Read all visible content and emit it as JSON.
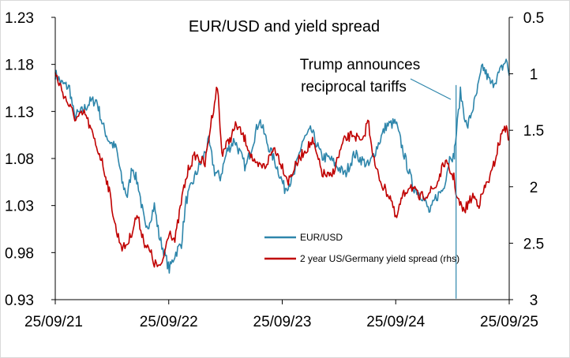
{
  "chart_data": {
    "type": "line",
    "title": "EUR/USD and yield spread",
    "xlabel": "",
    "ylabel": "",
    "x_ticks": [
      "25/09/21",
      "25/09/22",
      "25/09/23",
      "25/09/24",
      "25/09/25"
    ],
    "y_left": {
      "ticks": [
        "0.93",
        "0.98",
        "1.03",
        "1.08",
        "1.13",
        "1.18",
        "1.23"
      ],
      "range": [
        0.93,
        1.23
      ]
    },
    "y_right": {
      "ticks": [
        "0.5",
        "1",
        "1.5",
        "2",
        "2.5",
        "3"
      ],
      "range": [
        0.5,
        3
      ],
      "inverted": true
    },
    "legend_position": "bottom-center",
    "annotation": "Trump announces reciprocal tariffs",
    "series": [
      {
        "name": "EUR/USD",
        "axis": "left",
        "color": "#2e86ab",
        "points": [
          [
            "2021-09-25",
            1.17
          ],
          [
            "2021-10-15",
            1.16
          ],
          [
            "2021-11-10",
            1.155
          ],
          [
            "2021-11-25",
            1.125
          ],
          [
            "2021-12-20",
            1.13
          ],
          [
            "2022-01-15",
            1.14
          ],
          [
            "2022-02-05",
            1.142
          ],
          [
            "2022-02-25",
            1.115
          ],
          [
            "2022-03-15",
            1.1
          ],
          [
            "2022-04-10",
            1.09
          ],
          [
            "2022-04-28",
            1.055
          ],
          [
            "2022-05-15",
            1.04
          ],
          [
            "2022-05-31",
            1.072
          ],
          [
            "2022-06-20",
            1.05
          ],
          [
            "2022-07-14",
            1.002
          ],
          [
            "2022-08-10",
            1.03
          ],
          [
            "2022-08-25",
            0.998
          ],
          [
            "2022-09-27",
            0.962
          ],
          [
            "2022-10-15",
            0.978
          ],
          [
            "2022-11-05",
            0.99
          ],
          [
            "2022-11-20",
            1.035
          ],
          [
            "2022-12-20",
            1.062
          ],
          [
            "2023-01-15",
            1.082
          ],
          [
            "2023-02-01",
            1.098
          ],
          [
            "2023-02-20",
            1.066
          ],
          [
            "2023-03-10",
            1.06
          ],
          [
            "2023-04-01",
            1.088
          ],
          [
            "2023-04-25",
            1.1
          ],
          [
            "2023-05-31",
            1.07
          ],
          [
            "2023-07-14",
            1.122
          ],
          [
            "2023-08-10",
            1.095
          ],
          [
            "2023-09-10",
            1.07
          ],
          [
            "2023-10-03",
            1.048
          ],
          [
            "2023-11-01",
            1.06
          ],
          [
            "2023-11-29",
            1.098
          ],
          [
            "2023-12-28",
            1.11
          ],
          [
            "2024-01-30",
            1.082
          ],
          [
            "2024-02-25",
            1.08
          ],
          [
            "2024-04-15",
            1.063
          ],
          [
            "2024-05-15",
            1.085
          ],
          [
            "2024-06-30",
            1.072
          ],
          [
            "2024-08-25",
            1.115
          ],
          [
            "2024-09-25",
            1.118
          ],
          [
            "2024-10-25",
            1.08
          ],
          [
            "2024-11-20",
            1.05
          ],
          [
            "2024-12-20",
            1.04
          ],
          [
            "2025-01-13",
            1.022
          ],
          [
            "2025-01-31",
            1.038
          ],
          [
            "2025-02-25",
            1.048
          ],
          [
            "2025-03-20",
            1.085
          ],
          [
            "2025-04-01",
            1.08
          ],
          [
            "2025-04-02",
            1.09
          ],
          [
            "2025-04-08",
            1.107
          ],
          [
            "2025-04-21",
            1.15
          ],
          [
            "2025-05-12",
            1.112
          ],
          [
            "2025-06-10",
            1.145
          ],
          [
            "2025-07-01",
            1.178
          ],
          [
            "2025-07-30",
            1.158
          ],
          [
            "2025-08-20",
            1.168
          ],
          [
            "2025-09-15",
            1.185
          ],
          [
            "2025-09-25",
            1.168
          ]
        ]
      },
      {
        "name": "2 year US/Germany yield spread (rhs)",
        "axis": "right",
        "color": "#c00000",
        "points": [
          [
            "2021-09-25",
            1.0
          ],
          [
            "2021-10-25",
            1.2
          ],
          [
            "2021-11-30",
            1.4
          ],
          [
            "2021-12-30",
            1.35
          ],
          [
            "2022-01-30",
            1.6
          ],
          [
            "2022-02-20",
            1.75
          ],
          [
            "2022-03-15",
            2.0
          ],
          [
            "2022-04-10",
            2.4
          ],
          [
            "2022-05-01",
            2.55
          ],
          [
            "2022-05-20",
            2.48
          ],
          [
            "2022-06-15",
            2.25
          ],
          [
            "2022-07-10",
            2.5
          ],
          [
            "2022-07-31",
            2.6
          ],
          [
            "2022-08-10",
            2.68
          ],
          [
            "2022-09-01",
            2.72
          ],
          [
            "2022-09-27",
            2.38
          ],
          [
            "2022-10-15",
            2.48
          ],
          [
            "2022-11-10",
            2.05
          ],
          [
            "2022-11-30",
            1.82
          ],
          [
            "2022-12-20",
            1.72
          ],
          [
            "2023-01-20",
            1.8
          ],
          [
            "2023-02-10",
            1.4
          ],
          [
            "2023-03-01",
            1.1
          ],
          [
            "2023-03-15",
            1.7
          ],
          [
            "2023-04-10",
            1.58
          ],
          [
            "2023-05-01",
            1.45
          ],
          [
            "2023-06-01",
            1.6
          ],
          [
            "2023-07-01",
            1.82
          ],
          [
            "2023-08-01",
            1.82
          ],
          [
            "2023-09-01",
            1.65
          ],
          [
            "2023-10-15",
            1.95
          ],
          [
            "2023-11-01",
            1.85
          ],
          [
            "2023-12-01",
            1.7
          ],
          [
            "2024-01-01",
            1.6
          ],
          [
            "2024-02-01",
            1.88
          ],
          [
            "2024-03-01",
            1.92
          ],
          [
            "2024-04-10",
            1.6
          ],
          [
            "2024-05-10",
            1.53
          ],
          [
            "2024-06-10",
            1.62
          ],
          [
            "2024-06-27",
            1.4
          ],
          [
            "2024-07-20",
            1.82
          ],
          [
            "2024-08-15",
            2.0
          ],
          [
            "2024-09-10",
            2.1
          ],
          [
            "2024-09-25",
            2.3
          ],
          [
            "2024-10-15",
            2.1
          ],
          [
            "2024-11-10",
            1.98
          ],
          [
            "2024-12-10",
            2.1
          ],
          [
            "2025-01-10",
            2.05
          ],
          [
            "2025-02-01",
            2.0
          ],
          [
            "2025-03-01",
            1.78
          ],
          [
            "2025-03-31",
            1.92
          ],
          [
            "2025-04-10",
            2.1
          ],
          [
            "2025-05-01",
            2.22
          ],
          [
            "2025-05-31",
            2.08
          ],
          [
            "2025-06-20",
            2.15
          ],
          [
            "2025-07-10",
            2.0
          ],
          [
            "2025-07-31",
            1.88
          ],
          [
            "2025-08-20",
            1.65
          ],
          [
            "2025-09-10",
            1.45
          ],
          [
            "2025-09-25",
            1.58
          ]
        ]
      }
    ]
  }
}
